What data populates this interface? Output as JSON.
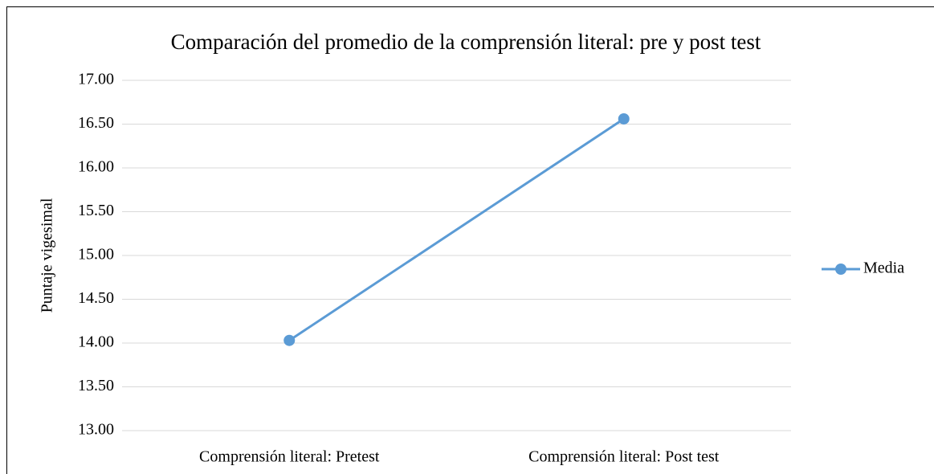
{
  "chart_data": {
    "type": "line",
    "title": "Comparación del promedio de la comprensión literal: pre y post test",
    "y_label": "Puntaje vigesimal",
    "categories": [
      "Comprensión literal: Pretest",
      "Comprensión literal: Post test"
    ],
    "series": [
      {
        "name": "Media",
        "color": "#5b9bd5",
        "values": [
          14.03,
          16.56
        ]
      }
    ],
    "ylim": [
      13,
      17
    ],
    "yticks": [
      {
        "value": 13,
        "label": "13.00"
      },
      {
        "value": 13.5,
        "label": "13.50"
      },
      {
        "value": 14,
        "label": "14.00"
      },
      {
        "value": 14.5,
        "label": "14.50"
      },
      {
        "value": 15,
        "label": "15.00"
      },
      {
        "value": 15.5,
        "label": "15.50"
      },
      {
        "value": 16,
        "label": "16.00"
      },
      {
        "value": 16.5,
        "label": "16.50"
      },
      {
        "value": 17,
        "label": "17.00"
      }
    ],
    "grid": true,
    "legend": "right"
  }
}
